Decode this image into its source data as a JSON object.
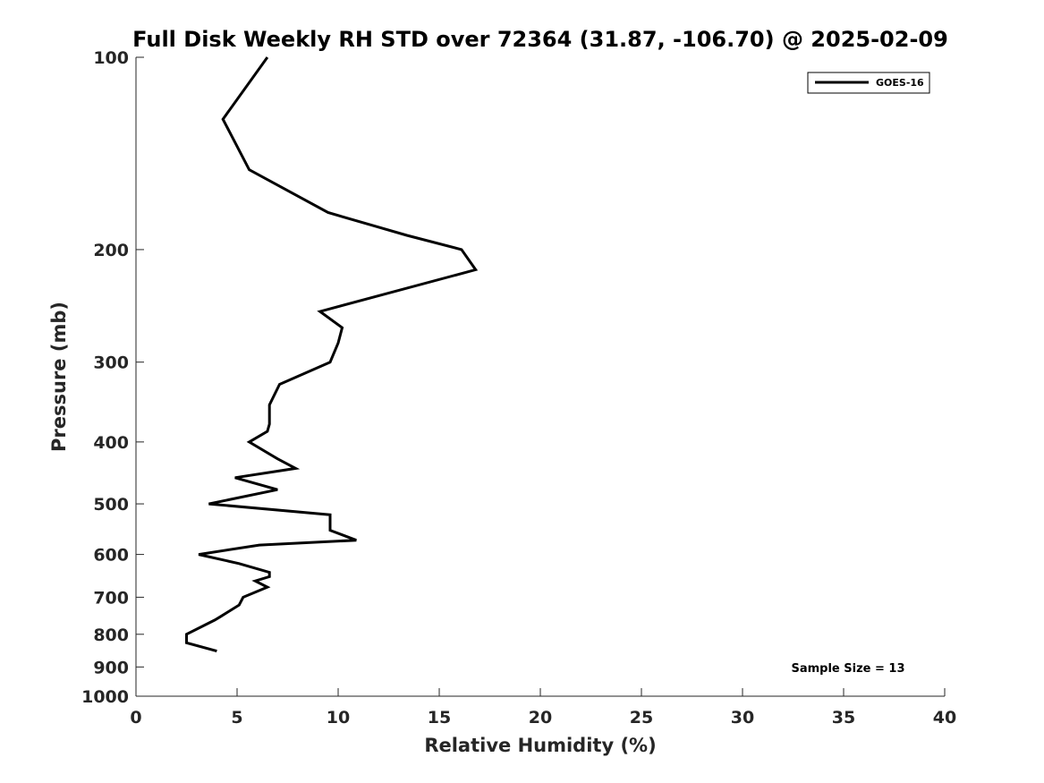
{
  "chart_data": {
    "type": "line",
    "title": "Full Disk Weekly RH STD over 72364 (31.87, -106.70) @ 2025-02-09",
    "xlabel": "Relative Humidity (%)",
    "ylabel": "Pressure (mb)",
    "xlim": [
      0,
      40
    ],
    "ylim": [
      1000,
      100
    ],
    "y_scale": "log",
    "y_reversed": true,
    "x_ticks": [
      0,
      5,
      10,
      15,
      20,
      25,
      30,
      35,
      40
    ],
    "y_ticks": [
      100,
      200,
      300,
      400,
      500,
      600,
      700,
      800,
      900,
      1000
    ],
    "grid": false,
    "legend_position": "top-right",
    "series": [
      {
        "name": "GOES-16",
        "color": "#000000",
        "points": [
          [
            6.5,
            100
          ],
          [
            4.3,
            125
          ],
          [
            5.6,
            150
          ],
          [
            9.5,
            175
          ],
          [
            13.4,
            190
          ],
          [
            16.1,
            200
          ],
          [
            16.8,
            215
          ],
          [
            9.1,
            250
          ],
          [
            10.2,
            265
          ],
          [
            10.0,
            280
          ],
          [
            9.6,
            300
          ],
          [
            7.1,
            325
          ],
          [
            6.6,
            350
          ],
          [
            6.6,
            375
          ],
          [
            6.5,
            385
          ],
          [
            5.6,
            400
          ],
          [
            7.0,
            425
          ],
          [
            7.9,
            440
          ],
          [
            4.9,
            455
          ],
          [
            7.0,
            475
          ],
          [
            3.6,
            500
          ],
          [
            9.6,
            520
          ],
          [
            9.6,
            550
          ],
          [
            10.9,
            570
          ],
          [
            6.1,
            580
          ],
          [
            3.1,
            600
          ],
          [
            5.1,
            620
          ],
          [
            6.6,
            640
          ],
          [
            6.6,
            650
          ],
          [
            5.9,
            660
          ],
          [
            6.5,
            675
          ],
          [
            5.3,
            700
          ],
          [
            5.1,
            720
          ],
          [
            4.2,
            750
          ],
          [
            3.9,
            760
          ],
          [
            2.5,
            800
          ],
          [
            2.5,
            825
          ],
          [
            4.0,
            850
          ]
        ]
      }
    ],
    "annotations": [
      "Sample Size = 13"
    ]
  }
}
